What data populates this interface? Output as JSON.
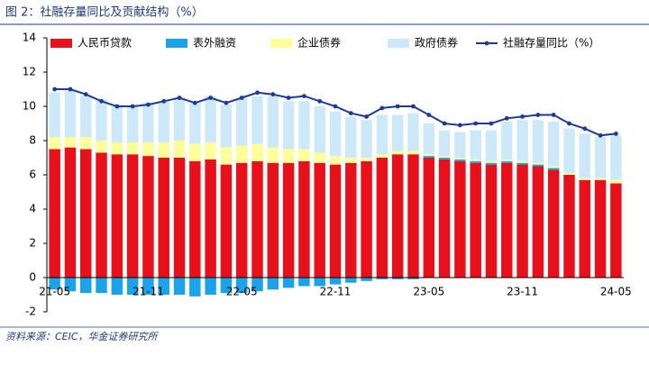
{
  "chart_data": {
    "type": "bar",
    "stacked": true,
    "title": "图 2：社融存量同比及贡献结构（%）",
    "source": "资料来源：CEIC，华金证券研究所",
    "categories": [
      "21-05",
      null,
      null,
      null,
      null,
      null,
      "21-11",
      null,
      null,
      null,
      null,
      null,
      "22-05",
      null,
      null,
      null,
      null,
      null,
      "22-11",
      null,
      null,
      null,
      null,
      null,
      "23-05",
      null,
      null,
      null,
      null,
      null,
      "23-11",
      null,
      null,
      null,
      null,
      null,
      "24-05"
    ],
    "ylim": [
      -2,
      14
    ],
    "yticks": [
      -2,
      0,
      2,
      4,
      6,
      8,
      10,
      12,
      14
    ],
    "series": [
      {
        "name": "人民币贷款",
        "type": "bar",
        "color": "#e8101a",
        "values": [
          7.5,
          7.6,
          7.5,
          7.3,
          7.2,
          7.2,
          7.1,
          7.0,
          7.0,
          6.8,
          6.9,
          6.6,
          6.7,
          6.8,
          6.7,
          6.7,
          6.8,
          6.7,
          6.6,
          6.7,
          6.8,
          7.0,
          7.2,
          7.2,
          7.0,
          6.9,
          6.8,
          6.7,
          6.6,
          6.7,
          6.6,
          6.5,
          6.3,
          6.0,
          5.7,
          5.7,
          5.5
        ]
      },
      {
        "name": "表外融资",
        "type": "bar",
        "color": "#1aa3e8",
        "values": [
          -0.7,
          -0.8,
          -0.9,
          -0.9,
          -1.0,
          -1.0,
          -1.0,
          -1.0,
          -1.0,
          -1.1,
          -1.0,
          -0.9,
          -0.9,
          -0.8,
          -0.7,
          -0.6,
          -0.5,
          -0.5,
          -0.4,
          -0.3,
          -0.2,
          -0.1,
          -0.1,
          -0.1,
          0.1,
          0.1,
          0.1,
          0.1,
          0.1,
          0.1,
          0.1,
          0.1,
          0.1,
          0,
          0,
          0,
          0
        ]
      },
      {
        "name": "企业债券",
        "type": "bar",
        "color": "#ffff99",
        "values": [
          0.7,
          0.6,
          0.7,
          0.7,
          0.7,
          0.7,
          0.8,
          0.9,
          1.0,
          1.0,
          1.0,
          1.0,
          1.0,
          1.0,
          0.9,
          0.8,
          0.7,
          0.6,
          0.5,
          0.3,
          0.2,
          0.2,
          0.2,
          0.2,
          0.1,
          0.1,
          0.1,
          0.1,
          0.1,
          0.1,
          0.1,
          0.1,
          0.1,
          0.1,
          0.1,
          0.1,
          0.2
        ]
      },
      {
        "name": "政府债券",
        "type": "bar",
        "color": "#cde9f9",
        "values": [
          2.6,
          2.7,
          2.4,
          2.4,
          2.1,
          2.1,
          2.3,
          2.4,
          2.5,
          2.4,
          2.7,
          2.5,
          2.8,
          2.8,
          3.0,
          2.8,
          2.8,
          2.7,
          2.6,
          2.4,
          2.2,
          2.3,
          2.1,
          2.2,
          1.8,
          1.5,
          1.5,
          1.7,
          1.8,
          2.2,
          2.4,
          2.5,
          2.6,
          2.6,
          2.6,
          2.4,
          2.6
        ]
      },
      {
        "name": "社融存量同比（%）",
        "type": "line",
        "color": "#1f3a93",
        "values": [
          11.0,
          11.0,
          10.7,
          10.3,
          10.0,
          10.0,
          10.1,
          10.3,
          10.5,
          10.2,
          10.5,
          10.2,
          10.5,
          10.8,
          10.7,
          10.5,
          10.6,
          10.3,
          10.0,
          9.6,
          9.4,
          9.9,
          10.0,
          10.0,
          9.5,
          9.0,
          8.9,
          9.0,
          9.0,
          9.3,
          9.4,
          9.5,
          9.5,
          9.0,
          8.7,
          8.3,
          8.4
        ]
      }
    ]
  }
}
